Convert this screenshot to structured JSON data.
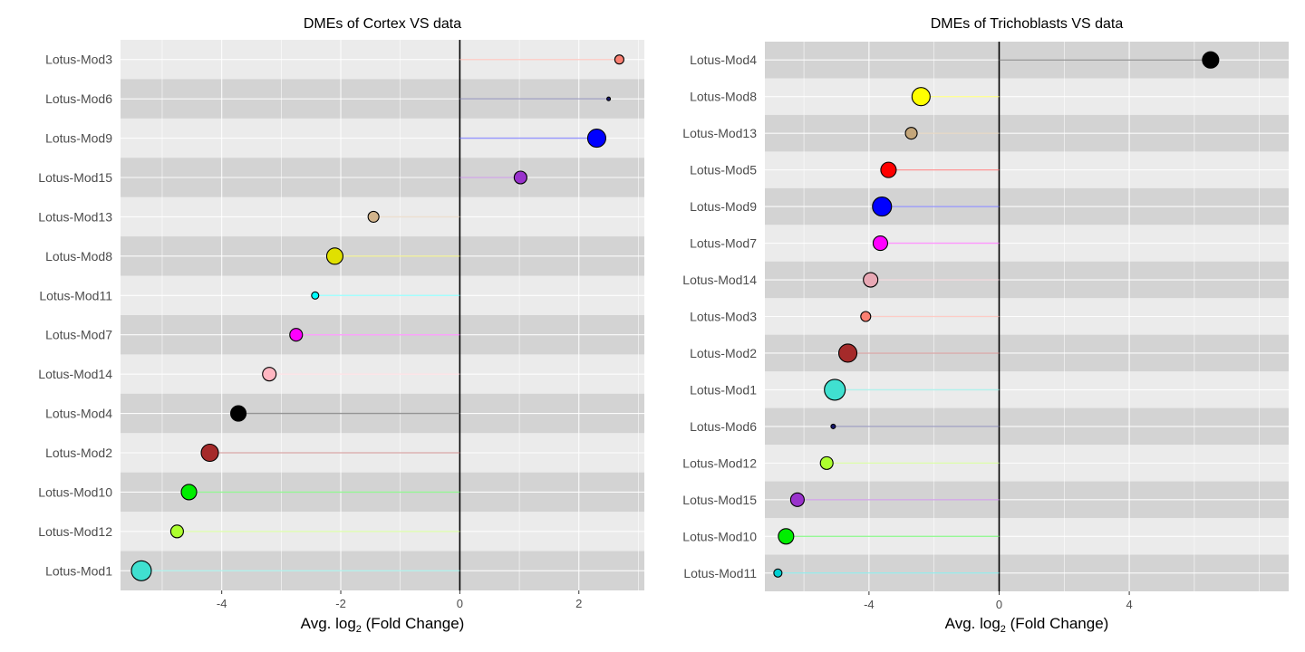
{
  "chart_data": [
    {
      "type": "lollipop",
      "title": "DMEs of Cortex VS data",
      "xlabel_main": "Avg. log",
      "xlabel_sub": "2",
      "xlabel_rest": " (Fold Change)",
      "xlim": [
        -5.7,
        3.1
      ],
      "xticks": [
        -4,
        -2,
        0,
        2
      ],
      "xtick_labels": [
        "-4",
        "-2",
        "0",
        "2"
      ],
      "grid": true,
      "band_colors": [
        "#ebebeb",
        "#d3d3d3"
      ],
      "points": [
        {
          "category": "Lotus-Mod3",
          "value": 2.68,
          "size": 5,
          "color": "#fa8072"
        },
        {
          "category": "Lotus-Mod6",
          "value": 2.5,
          "size": 2,
          "color": "#191970"
        },
        {
          "category": "Lotus-Mod9",
          "value": 2.3,
          "size": 10,
          "color": "#0000ff"
        },
        {
          "category": "Lotus-Mod15",
          "value": 1.02,
          "size": 7,
          "color": "#9932cc"
        },
        {
          "category": "Lotus-Mod13",
          "value": -1.45,
          "size": 6,
          "color": "#d2b48c"
        },
        {
          "category": "Lotus-Mod8",
          "value": -2.1,
          "size": 9,
          "color": "#e0e000"
        },
        {
          "category": "Lotus-Mod11",
          "value": -2.43,
          "size": 4,
          "color": "#00ffff"
        },
        {
          "category": "Lotus-Mod7",
          "value": -2.75,
          "size": 7,
          "color": "#ff00ff"
        },
        {
          "category": "Lotus-Mod14",
          "value": -3.2,
          "size": 7.5,
          "color": "#ffb6c1"
        },
        {
          "category": "Lotus-Mod4",
          "value": -3.72,
          "size": 8.5,
          "color": "#000000"
        },
        {
          "category": "Lotus-Mod2",
          "value": -4.2,
          "size": 9.5,
          "color": "#a52a2a"
        },
        {
          "category": "Lotus-Mod10",
          "value": -4.55,
          "size": 8.5,
          "color": "#00ee00"
        },
        {
          "category": "Lotus-Mod12",
          "value": -4.75,
          "size": 7,
          "color": "#adff2f"
        },
        {
          "category": "Lotus-Mod1",
          "value": -5.35,
          "size": 11,
          "color": "#40e0d0"
        }
      ]
    },
    {
      "type": "lollipop",
      "title": "DMEs of Trichoblasts VS data",
      "xlabel_main": "Avg. log",
      "xlabel_sub": "2",
      "xlabel_rest": " (Fold Change)",
      "xlim": [
        -7.2,
        8.9
      ],
      "xticks": [
        -4,
        0,
        4
      ],
      "xtick_labels": [
        "-4",
        "0",
        "4"
      ],
      "grid": true,
      "band_colors": [
        "#d3d3d3",
        "#ebebeb"
      ],
      "points": [
        {
          "category": "Lotus-Mod4",
          "value": 6.5,
          "size": 9,
          "color": "#000000"
        },
        {
          "category": "Lotus-Mod8",
          "value": -2.4,
          "size": 10,
          "color": "#ffff00"
        },
        {
          "category": "Lotus-Mod13",
          "value": -2.7,
          "size": 6.5,
          "color": "#c4a67a"
        },
        {
          "category": "Lotus-Mod5",
          "value": -3.4,
          "size": 8.5,
          "color": "#ff0000"
        },
        {
          "category": "Lotus-Mod9",
          "value": -3.6,
          "size": 10.5,
          "color": "#0000ff"
        },
        {
          "category": "Lotus-Mod7",
          "value": -3.65,
          "size": 8,
          "color": "#ff00ff"
        },
        {
          "category": "Lotus-Mod14",
          "value": -3.95,
          "size": 8,
          "color": "#e8a8b4"
        },
        {
          "category": "Lotus-Mod3",
          "value": -4.1,
          "size": 5.5,
          "color": "#fa8072"
        },
        {
          "category": "Lotus-Mod2",
          "value": -4.65,
          "size": 10,
          "color": "#a52a2a"
        },
        {
          "category": "Lotus-Mod1",
          "value": -5.05,
          "size": 11.5,
          "color": "#40e0d0"
        },
        {
          "category": "Lotus-Mod6",
          "value": -5.1,
          "size": 2.5,
          "color": "#191970"
        },
        {
          "category": "Lotus-Mod12",
          "value": -5.3,
          "size": 7,
          "color": "#adff2f"
        },
        {
          "category": "Lotus-Mod15",
          "value": -6.2,
          "size": 7.5,
          "color": "#9932cc"
        },
        {
          "category": "Lotus-Mod10",
          "value": -6.55,
          "size": 8.5,
          "color": "#00ee00"
        },
        {
          "category": "Lotus-Mod11",
          "value": -6.8,
          "size": 4.5,
          "color": "#00ced1"
        }
      ]
    }
  ]
}
